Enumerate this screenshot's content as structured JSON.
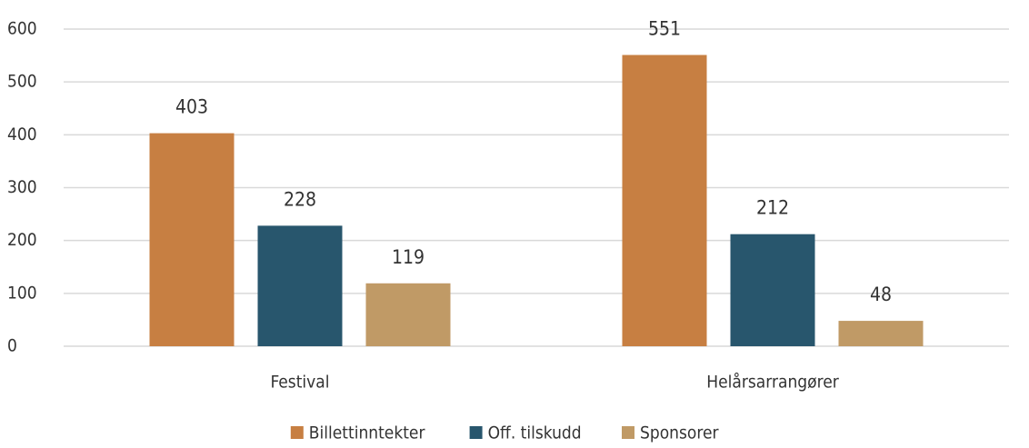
{
  "chart_data": {
    "type": "bar",
    "categories": [
      "Festival",
      "Helårsarrangører"
    ],
    "series": [
      {
        "name": "Billettinntekter",
        "color": "#c77f42",
        "values": [
          403,
          551
        ]
      },
      {
        "name": "Off. tilskudd",
        "color": "#28566d",
        "values": [
          228,
          212
        ]
      },
      {
        "name": "Sponsorer",
        "color": "#c09a66",
        "values": [
          119,
          48
        ]
      }
    ],
    "ylim": [
      0,
      600
    ],
    "yticks": [
      0,
      100,
      200,
      300,
      400,
      500,
      600
    ],
    "grid": true,
    "legend": "bottom"
  }
}
